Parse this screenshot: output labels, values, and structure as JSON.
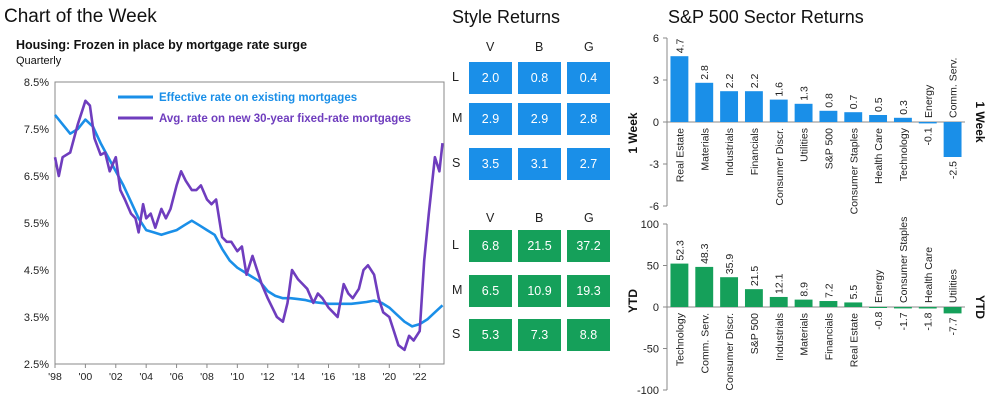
{
  "header": {
    "title": "Chart of the Week",
    "subtitle": "Housing: Frozen in place by mortgage rate surge",
    "frequency": "Quarterly"
  },
  "style_returns": {
    "title": "Style Returns",
    "columns": [
      "V",
      "B",
      "G"
    ],
    "rows": [
      "L",
      "M",
      "S"
    ],
    "week_label": "1 Week",
    "ytd_label": "YTD",
    "week": [
      [
        "2.0",
        "0.8",
        "0.4"
      ],
      [
        "2.9",
        "2.9",
        "2.8"
      ],
      [
        "3.5",
        "3.1",
        "2.7"
      ]
    ],
    "ytd": [
      [
        "6.8",
        "21.5",
        "37.2"
      ],
      [
        "6.5",
        "10.9",
        "19.3"
      ],
      [
        "5.3",
        "7.3",
        "8.8"
      ]
    ],
    "colors": {
      "week": "#1a8fe8",
      "ytd": "#15a05a"
    }
  },
  "sector_title": "S&P 500 Sector Returns",
  "chart_data": [
    {
      "type": "line",
      "ylim": [
        2.5,
        8.5
      ],
      "yticks": [
        "2.5%",
        "3.5%",
        "4.5%",
        "5.5%",
        "6.5%",
        "7.5%",
        "8.5%"
      ],
      "xticks": [
        "'98",
        "'00",
        "'02",
        "'04",
        "'06",
        "'08",
        "'10",
        "'12",
        "'14",
        "'16",
        "'18",
        "'20",
        "'22"
      ],
      "xlim": [
        1998,
        2023.6
      ],
      "series": [
        {
          "name": "Effective rate on existing mortgages",
          "color": "#1a8fe8",
          "x": [
            1998,
            1998.5,
            1999,
            1999.5,
            2000,
            2000.5,
            2001,
            2001.5,
            2002,
            2002.5,
            2003,
            2003.5,
            2004,
            2004.5,
            2005,
            2005.5,
            2006,
            2006.5,
            2007,
            2007.5,
            2008,
            2008.5,
            2009,
            2009.5,
            2010,
            2010.5,
            2011,
            2011.5,
            2012,
            2012.5,
            2013,
            2013.5,
            2014,
            2014.5,
            2015,
            2015.5,
            2016,
            2016.5,
            2017,
            2017.5,
            2018,
            2018.5,
            2019,
            2019.5,
            2020,
            2020.5,
            2021,
            2021.5,
            2022,
            2022.5,
            2023,
            2023.5
          ],
          "values": [
            7.8,
            7.6,
            7.4,
            7.5,
            7.7,
            7.55,
            7.2,
            6.9,
            6.6,
            6.3,
            5.95,
            5.6,
            5.35,
            5.3,
            5.25,
            5.3,
            5.35,
            5.45,
            5.55,
            5.45,
            5.35,
            5.25,
            4.95,
            4.7,
            4.55,
            4.45,
            4.35,
            4.25,
            4.05,
            3.95,
            3.9,
            3.9,
            3.88,
            3.86,
            3.82,
            3.8,
            3.78,
            3.78,
            3.78,
            3.78,
            3.8,
            3.82,
            3.85,
            3.8,
            3.7,
            3.55,
            3.4,
            3.3,
            3.35,
            3.45,
            3.6,
            3.75
          ]
        },
        {
          "name": "Avg. rate on new 30-year fixed-rate mortgages",
          "color": "#6f3dbe",
          "x": [
            1998,
            1998.25,
            1998.5,
            1999,
            1999.5,
            1999.8,
            2000,
            2000.3,
            2000.6,
            2001,
            2001.3,
            2001.6,
            2002,
            2002.3,
            2002.6,
            2003,
            2003.3,
            2003.5,
            2003.8,
            2004,
            2004.3,
            2004.6,
            2005,
            2005.3,
            2005.6,
            2006,
            2006.3,
            2006.6,
            2007,
            2007.3,
            2007.6,
            2008,
            2008.3,
            2008.6,
            2009,
            2009.3,
            2009.6,
            2010,
            2010.3,
            2010.6,
            2011,
            2011.3,
            2011.6,
            2012,
            2012.3,
            2012.6,
            2013,
            2013.3,
            2013.6,
            2014,
            2014.3,
            2014.6,
            2015,
            2015.3,
            2015.6,
            2016,
            2016.3,
            2016.6,
            2017,
            2017.3,
            2017.6,
            2018,
            2018.3,
            2018.6,
            2019,
            2019.3,
            2019.6,
            2020,
            2020.3,
            2020.6,
            2021,
            2021.3,
            2021.6,
            2022,
            2022.3,
            2022.6,
            2023,
            2023.3,
            2023.5
          ],
          "values": [
            6.9,
            6.5,
            6.9,
            7.0,
            7.6,
            7.9,
            8.1,
            8.0,
            7.3,
            6.95,
            7.0,
            6.6,
            6.9,
            6.2,
            6.0,
            5.7,
            5.6,
            5.3,
            5.9,
            5.6,
            5.7,
            5.4,
            5.8,
            5.6,
            5.8,
            6.3,
            6.6,
            6.4,
            6.2,
            6.2,
            6.3,
            6.0,
            5.9,
            6.0,
            5.2,
            5.1,
            5.1,
            4.9,
            5.0,
            4.4,
            4.8,
            4.5,
            4.2,
            3.9,
            3.7,
            3.5,
            3.4,
            3.8,
            4.5,
            4.3,
            4.2,
            4.1,
            3.8,
            4.0,
            3.9,
            3.7,
            3.6,
            3.5,
            4.2,
            4.0,
            3.9,
            4.1,
            4.5,
            4.6,
            4.4,
            3.9,
            3.6,
            3.5,
            3.2,
            2.9,
            2.8,
            3.1,
            3.0,
            3.2,
            4.7,
            5.7,
            6.9,
            6.6,
            7.2
          ]
        }
      ]
    },
    {
      "type": "bar",
      "name": "1 Week",
      "color": "#1a8fe8",
      "ylim": [
        -6,
        6
      ],
      "yticks": [
        "-6",
        "-3",
        "0",
        "3",
        "6"
      ],
      "categories": [
        "Real Estate",
        "Materials",
        "Industrials",
        "Financials",
        "Consumer Discr.",
        "Utilities",
        "S&P 500",
        "Consumer Staples",
        "Health Care",
        "Technology",
        "Energy",
        "Comm. Serv."
      ],
      "values": [
        4.7,
        2.8,
        2.2,
        2.2,
        1.6,
        1.3,
        0.8,
        0.7,
        0.5,
        0.3,
        -0.1,
        -2.5
      ],
      "labels": [
        "4.7",
        "2.8",
        "2.2",
        "2.2",
        "1.6",
        "1.3",
        "0.8",
        "0.7",
        "0.5",
        "0.3",
        "-0.1",
        "-2.5"
      ]
    },
    {
      "type": "bar",
      "name": "YTD",
      "color": "#15a05a",
      "ylim": [
        -100,
        100
      ],
      "yticks": [
        "-100",
        "-50",
        "0",
        "50",
        "100"
      ],
      "categories": [
        "Technology",
        "Comm. Serv.",
        "Consumer Discr.",
        "S&P 500",
        "Industrials",
        "Materials",
        "Financials",
        "Real Estate",
        "Energy",
        "Consumer Staples",
        "Health Care",
        "Utilities"
      ],
      "values": [
        52.3,
        48.3,
        35.9,
        21.5,
        12.1,
        8.9,
        7.2,
        5.5,
        -0.8,
        -1.7,
        -1.8,
        -7.7
      ],
      "labels": [
        "52.3",
        "48.3",
        "35.9",
        "21.5",
        "12.1",
        "8.9",
        "7.2",
        "5.5",
        "-0.8",
        "-1.7",
        "-1.8",
        "-7.7"
      ]
    }
  ]
}
